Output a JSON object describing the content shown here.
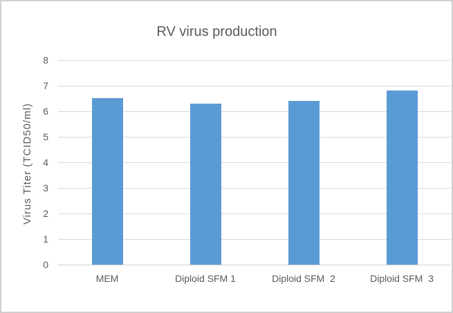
{
  "chart_data": {
    "type": "bar",
    "title": "RV virus production",
    "categories": [
      "MEM",
      "Diploid SFM 1",
      "Diploid SFM  2",
      "Diploid SFM  3"
    ],
    "values": [
      6.5,
      6.3,
      6.4,
      6.8
    ],
    "xlabel": "",
    "ylabel": "Virus Titer (TCID50/ml)",
    "ylim": [
      0,
      8
    ],
    "yticks": [
      0,
      1,
      2,
      3,
      4,
      5,
      6,
      7,
      8
    ],
    "grid": true,
    "legend": "none",
    "bar_color": "#5b9bd5",
    "gridline_color": "#d9d9d9",
    "axis_line_color": "#cfcfcf",
    "text_color": "#595959",
    "background": "#ffffff",
    "border_color": "#cfcfcf"
  }
}
